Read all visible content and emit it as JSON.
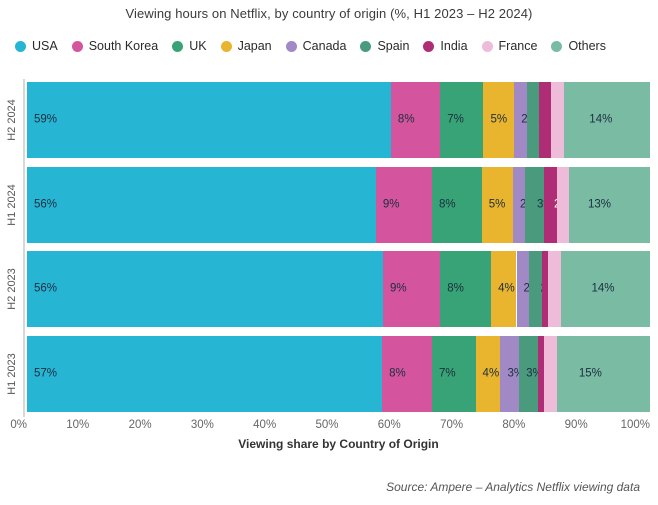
{
  "title": "Viewing hours on Netflix, by country of origin (%, H1 2023 – H2 2024)",
  "source": "Source: Ampere – Analytics Netflix viewing data",
  "chart_data": {
    "type": "bar",
    "stacked": true,
    "orientation": "horizontal",
    "title": "Viewing hours on Netflix, by country of origin (%, H1 2023 – H2 2024)",
    "xlabel": "Viewing share by Country of Origin",
    "ylabel": "",
    "xlim": [
      0,
      100
    ],
    "x_ticks": [
      "0%",
      "10%",
      "20%",
      "30%",
      "40%",
      "50%",
      "60%",
      "70%",
      "80%",
      "90%",
      "100%"
    ],
    "grid": false,
    "legend_position": "top",
    "categories": [
      "H2 2024",
      "H1 2024",
      "H2 2023",
      "H1 2023"
    ],
    "series": [
      {
        "name": "USA",
        "color": "#27b5d4"
      },
      {
        "name": "South Korea",
        "color": "#d4559e"
      },
      {
        "name": "UK",
        "color": "#38a377"
      },
      {
        "name": "Japan",
        "color": "#e9b42e"
      },
      {
        "name": "Canada",
        "color": "#a189c5"
      },
      {
        "name": "Spain",
        "color": "#4a9a7e"
      },
      {
        "name": "India",
        "color": "#af2d75"
      },
      {
        "name": "France",
        "color": "#eebcd9"
      },
      {
        "name": "Others",
        "color": "#79bba3"
      }
    ],
    "rows": [
      {
        "category": "H2 2024",
        "values": [
          59,
          8,
          7,
          5,
          2,
          2,
          2,
          2,
          14
        ]
      },
      {
        "category": "H1 2024",
        "values": [
          56,
          9,
          8,
          5,
          2,
          3,
          2,
          2,
          13
        ]
      },
      {
        "category": "H2 2023",
        "values": [
          56,
          9,
          8,
          4,
          2,
          2,
          1,
          2,
          14
        ]
      },
      {
        "category": "H1 2023",
        "values": [
          57,
          8,
          7,
          4,
          3,
          3,
          1,
          2,
          15
        ]
      }
    ],
    "value_suffix": "%",
    "light_label_series": [
      "India"
    ]
  },
  "styles": {
    "label_dark": "#1c2e3e",
    "label_light": "#ffffff",
    "axis_line": "#d8d8d8",
    "tick_color": "#666666"
  }
}
